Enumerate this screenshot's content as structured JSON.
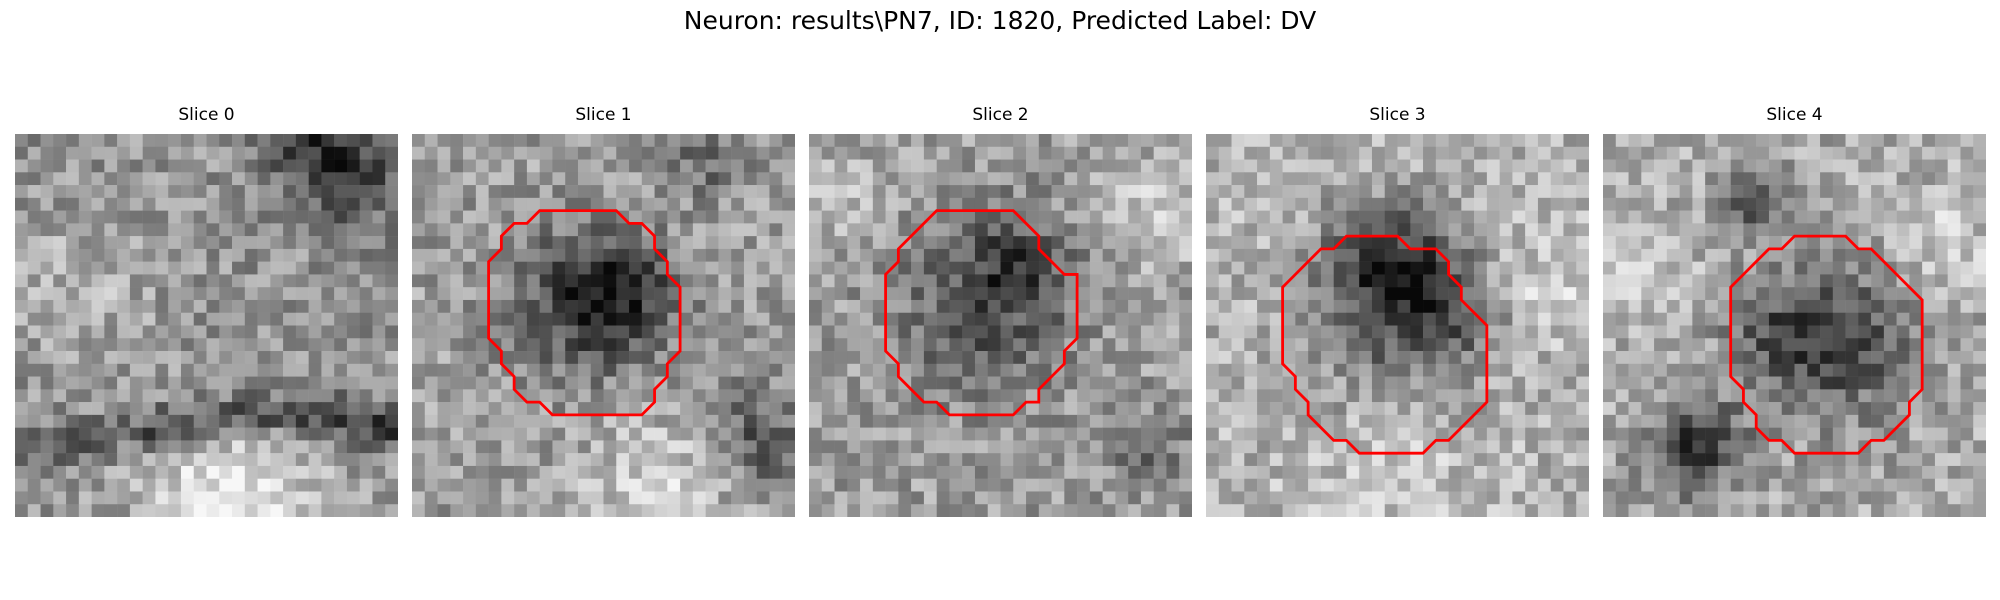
{
  "figure": {
    "title": "Neuron: results\\PN7, ID: 1820, Predicted Label: DV",
    "contour_color": "#ff0000",
    "colormap": "grayscale",
    "panels": [
      {
        "title": "Slice 0",
        "has_contour": false
      },
      {
        "title": "Slice 1",
        "has_contour": true
      },
      {
        "title": "Slice 2",
        "has_contour": true
      },
      {
        "title": "Slice 3",
        "has_contour": true
      },
      {
        "title": "Slice 4",
        "has_contour": true
      }
    ]
  }
}
